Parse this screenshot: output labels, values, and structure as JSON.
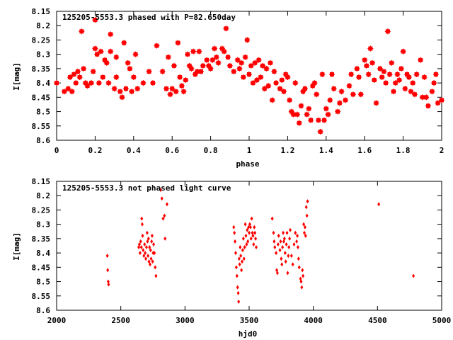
{
  "colors": {
    "points": "#ff0000",
    "axes": "#000000",
    "background": "#ffffff"
  },
  "chart_data": [
    {
      "type": "scatter",
      "title": "125205-5553.3 phased with P=82.650day",
      "xlabel": "phase",
      "ylabel": "I[mag]",
      "xlim": [
        0,
        2
      ],
      "ylim": [
        8.6,
        8.15
      ],
      "y_inverted": true,
      "marker": "filled-star",
      "grid": false,
      "x_ticks": [
        "0",
        "0.2",
        "0.4",
        "0.6",
        "0.8",
        "1",
        "1.2",
        "1.4",
        "1.6",
        "1.8",
        "2"
      ],
      "y_ticks": [
        "8.15",
        "8.2",
        "8.25",
        "8.3",
        "8.35",
        "8.4",
        "8.45",
        "8.5",
        "8.55",
        "8.6"
      ],
      "points": [
        [
          0.0,
          8.4
        ],
        [
          0.04,
          8.43
        ],
        [
          0.06,
          8.42
        ],
        [
          0.07,
          8.38
        ],
        [
          0.08,
          8.43
        ],
        [
          0.09,
          8.37
        ],
        [
          0.1,
          8.4
        ],
        [
          0.11,
          8.36
        ],
        [
          0.12,
          8.38
        ],
        [
          0.13,
          8.22
        ],
        [
          0.14,
          8.35
        ],
        [
          0.15,
          8.4
        ],
        [
          0.16,
          8.41
        ],
        [
          0.18,
          8.4
        ],
        [
          0.19,
          8.36
        ],
        [
          0.2,
          8.18
        ],
        [
          0.2,
          8.28
        ],
        [
          0.21,
          8.3
        ],
        [
          0.22,
          8.4
        ],
        [
          0.23,
          8.29
        ],
        [
          0.24,
          8.38
        ],
        [
          0.25,
          8.32
        ],
        [
          0.26,
          8.33
        ],
        [
          0.27,
          8.4
        ],
        [
          0.28,
          8.23
        ],
        [
          0.28,
          8.29
        ],
        [
          0.3,
          8.42
        ],
        [
          0.31,
          8.38
        ],
        [
          0.31,
          8.31
        ],
        [
          0.33,
          8.43
        ],
        [
          0.34,
          8.45
        ],
        [
          0.35,
          8.26
        ],
        [
          0.36,
          8.42
        ],
        [
          0.37,
          8.33
        ],
        [
          0.38,
          8.35
        ],
        [
          0.39,
          8.43
        ],
        [
          0.4,
          8.38
        ],
        [
          0.41,
          8.3
        ],
        [
          0.42,
          8.42
        ],
        [
          0.45,
          8.4
        ],
        [
          0.48,
          8.36
        ],
        [
          0.5,
          8.4
        ],
        [
          0.52,
          8.27
        ],
        [
          0.55,
          8.36
        ],
        [
          0.57,
          8.42
        ],
        [
          0.58,
          8.31
        ],
        [
          0.59,
          8.44
        ],
        [
          0.6,
          8.42
        ],
        [
          0.61,
          8.34
        ],
        [
          0.62,
          8.43
        ],
        [
          0.63,
          8.26
        ],
        [
          0.64,
          8.38
        ],
        [
          0.65,
          8.41
        ],
        [
          0.66,
          8.43
        ],
        [
          0.67,
          8.39
        ],
        [
          0.68,
          8.3
        ],
        [
          0.69,
          8.34
        ],
        [
          0.7,
          8.35
        ],
        [
          0.71,
          8.29
        ],
        [
          0.72,
          8.37
        ],
        [
          0.73,
          8.36
        ],
        [
          0.74,
          8.29
        ],
        [
          0.75,
          8.36
        ],
        [
          0.76,
          8.34
        ],
        [
          0.78,
          8.32
        ],
        [
          0.79,
          8.34
        ],
        [
          0.8,
          8.35
        ],
        [
          0.81,
          8.32
        ],
        [
          0.82,
          8.28
        ],
        [
          0.83,
          8.31
        ],
        [
          0.84,
          8.33
        ],
        [
          0.86,
          8.28
        ],
        [
          0.87,
          8.29
        ],
        [
          0.88,
          8.21
        ],
        [
          0.89,
          8.31
        ],
        [
          0.9,
          8.34
        ],
        [
          0.92,
          8.36
        ],
        [
          0.94,
          8.32
        ],
        [
          0.95,
          8.35
        ],
        [
          0.96,
          8.33
        ],
        [
          0.97,
          8.38
        ],
        [
          0.98,
          8.31
        ],
        [
          0.99,
          8.25
        ],
        [
          1.0,
          8.37
        ],
        [
          1.01,
          8.34
        ],
        [
          1.02,
          8.4
        ],
        [
          1.03,
          8.33
        ],
        [
          1.04,
          8.39
        ],
        [
          1.05,
          8.32
        ],
        [
          1.06,
          8.38
        ],
        [
          1.07,
          8.34
        ],
        [
          1.08,
          8.42
        ],
        [
          1.09,
          8.35
        ],
        [
          1.1,
          8.41
        ],
        [
          1.11,
          8.33
        ],
        [
          1.12,
          8.46
        ],
        [
          1.13,
          8.36
        ],
        [
          1.14,
          8.4
        ],
        [
          1.16,
          8.42
        ],
        [
          1.17,
          8.39
        ],
        [
          1.18,
          8.43
        ],
        [
          1.19,
          8.37
        ],
        [
          1.2,
          8.38
        ],
        [
          1.21,
          8.46
        ],
        [
          1.22,
          8.5
        ],
        [
          1.23,
          8.51
        ],
        [
          1.24,
          8.4
        ],
        [
          1.25,
          8.51
        ],
        [
          1.26,
          8.54
        ],
        [
          1.27,
          8.48
        ],
        [
          1.28,
          8.43
        ],
        [
          1.29,
          8.42
        ],
        [
          1.3,
          8.51
        ],
        [
          1.31,
          8.49
        ],
        [
          1.32,
          8.53
        ],
        [
          1.33,
          8.41
        ],
        [
          1.34,
          8.4
        ],
        [
          1.35,
          8.44
        ],
        [
          1.36,
          8.53
        ],
        [
          1.37,
          8.57
        ],
        [
          1.38,
          8.37
        ],
        [
          1.39,
          8.53
        ],
        [
          1.4,
          8.49
        ],
        [
          1.41,
          8.51
        ],
        [
          1.42,
          8.46
        ],
        [
          1.43,
          8.37
        ],
        [
          1.44,
          8.42
        ],
        [
          1.46,
          8.5
        ],
        [
          1.47,
          8.47
        ],
        [
          1.48,
          8.43
        ],
        [
          1.5,
          8.46
        ],
        [
          1.52,
          8.41
        ],
        [
          1.53,
          8.37
        ],
        [
          1.54,
          8.44
        ],
        [
          1.56,
          8.35
        ],
        [
          1.57,
          8.38
        ],
        [
          1.58,
          8.44
        ],
        [
          1.6,
          8.32
        ],
        [
          1.61,
          8.34
        ],
        [
          1.62,
          8.37
        ],
        [
          1.63,
          8.28
        ],
        [
          1.64,
          8.33
        ],
        [
          1.65,
          8.39
        ],
        [
          1.66,
          8.47
        ],
        [
          1.68,
          8.35
        ],
        [
          1.69,
          8.38
        ],
        [
          1.7,
          8.36
        ],
        [
          1.71,
          8.4
        ],
        [
          1.72,
          8.22
        ],
        [
          1.73,
          8.37
        ],
        [
          1.74,
          8.33
        ],
        [
          1.75,
          8.43
        ],
        [
          1.76,
          8.4
        ],
        [
          1.77,
          8.37
        ],
        [
          1.78,
          8.39
        ],
        [
          1.79,
          8.35
        ],
        [
          1.8,
          8.29
        ],
        [
          1.81,
          8.42
        ],
        [
          1.82,
          8.37
        ],
        [
          1.83,
          8.38
        ],
        [
          1.84,
          8.43
        ],
        [
          1.85,
          8.4
        ],
        [
          1.86,
          8.44
        ],
        [
          1.87,
          8.37
        ],
        [
          1.89,
          8.32
        ],
        [
          1.9,
          8.45
        ],
        [
          1.91,
          8.38
        ],
        [
          1.92,
          8.45
        ],
        [
          1.93,
          8.48
        ],
        [
          1.95,
          8.43
        ],
        [
          1.96,
          8.4
        ],
        [
          1.97,
          8.37
        ],
        [
          1.98,
          8.47
        ],
        [
          2.0,
          8.46
        ]
      ]
    },
    {
      "type": "scatter",
      "title": "125205-5553.3 not phased light curve",
      "xlabel": "hjd0",
      "ylabel": "I[mag]",
      "xlim": [
        2000,
        5000
      ],
      "ylim": [
        8.6,
        8.15
      ],
      "y_inverted": true,
      "marker": "small-diamond",
      "grid": false,
      "x_ticks": [
        "2000",
        "2500",
        "3000",
        "3500",
        "4000",
        "4500",
        "5000"
      ],
      "y_ticks": [
        "8.15",
        "8.2",
        "8.25",
        "8.3",
        "8.35",
        "8.4",
        "8.45",
        "8.5",
        "8.55",
        "8.6"
      ],
      "points": [
        [
          2395,
          8.41
        ],
        [
          2398,
          8.46
        ],
        [
          2402,
          8.5
        ],
        [
          2405,
          8.51
        ],
        [
          2640,
          8.38
        ],
        [
          2645,
          8.37
        ],
        [
          2650,
          8.4
        ],
        [
          2655,
          8.36
        ],
        [
          2660,
          8.38
        ],
        [
          2663,
          8.28
        ],
        [
          2667,
          8.3
        ],
        [
          2670,
          8.34
        ],
        [
          2674,
          8.39
        ],
        [
          2680,
          8.41
        ],
        [
          2685,
          8.37
        ],
        [
          2690,
          8.4
        ],
        [
          2695,
          8.42
        ],
        [
          2700,
          8.38
        ],
        [
          2705,
          8.33
        ],
        [
          2708,
          8.36
        ],
        [
          2712,
          8.41
        ],
        [
          2716,
          8.35
        ],
        [
          2720,
          8.43
        ],
        [
          2724,
          8.38
        ],
        [
          2728,
          8.44
        ],
        [
          2732,
          8.39
        ],
        [
          2736,
          8.42
        ],
        [
          2740,
          8.36
        ],
        [
          2744,
          8.34
        ],
        [
          2748,
          8.43
        ],
        [
          2752,
          8.4
        ],
        [
          2756,
          8.37
        ],
        [
          2762,
          8.4
        ],
        [
          2768,
          8.45
        ],
        [
          2774,
          8.48
        ],
        [
          2810,
          8.18
        ],
        [
          2820,
          8.21
        ],
        [
          2830,
          8.28
        ],
        [
          2840,
          8.27
        ],
        [
          2845,
          8.35
        ],
        [
          2860,
          8.23
        ],
        [
          3380,
          8.31
        ],
        [
          3385,
          8.33
        ],
        [
          3390,
          8.36
        ],
        [
          3395,
          8.4
        ],
        [
          3400,
          8.45
        ],
        [
          3405,
          8.48
        ],
        [
          3410,
          8.52
        ],
        [
          3415,
          8.54
        ],
        [
          3418,
          8.57
        ],
        [
          3422,
          8.42
        ],
        [
          3426,
          8.44
        ],
        [
          3430,
          8.38
        ],
        [
          3435,
          8.41
        ],
        [
          3440,
          8.46
        ],
        [
          3445,
          8.43
        ],
        [
          3450,
          8.39
        ],
        [
          3455,
          8.35
        ],
        [
          3460,
          8.42
        ],
        [
          3465,
          8.38
        ],
        [
          3470,
          8.3
        ],
        [
          3475,
          8.34
        ],
        [
          3480,
          8.37
        ],
        [
          3485,
          8.32
        ],
        [
          3490,
          8.36
        ],
        [
          3495,
          8.31
        ],
        [
          3500,
          8.33
        ],
        [
          3505,
          8.3
        ],
        [
          3510,
          8.31
        ],
        [
          3515,
          8.35
        ],
        [
          3520,
          8.28
        ],
        [
          3525,
          8.33
        ],
        [
          3530,
          8.34
        ],
        [
          3535,
          8.37
        ],
        [
          3540,
          8.31
        ],
        [
          3545,
          8.33
        ],
        [
          3550,
          8.35
        ],
        [
          3555,
          8.38
        ],
        [
          3680,
          8.28
        ],
        [
          3690,
          8.33
        ],
        [
          3695,
          8.36
        ],
        [
          3700,
          8.38
        ],
        [
          3710,
          8.4
        ],
        [
          3715,
          8.46
        ],
        [
          3720,
          8.47
        ],
        [
          3725,
          8.37
        ],
        [
          3730,
          8.34
        ],
        [
          3740,
          8.39
        ],
        [
          3745,
          8.36
        ],
        [
          3750,
          8.42
        ],
        [
          3755,
          8.44
        ],
        [
          3760,
          8.38
        ],
        [
          3765,
          8.33
        ],
        [
          3770,
          8.36
        ],
        [
          3775,
          8.35
        ],
        [
          3780,
          8.4
        ],
        [
          3785,
          8.43
        ],
        [
          3790,
          8.37
        ],
        [
          3795,
          8.33
        ],
        [
          3800,
          8.47
        ],
        [
          3805,
          8.41
        ],
        [
          3810,
          8.38
        ],
        [
          3815,
          8.35
        ],
        [
          3820,
          8.32
        ],
        [
          3830,
          8.41
        ],
        [
          3840,
          8.44
        ],
        [
          3850,
          8.37
        ],
        [
          3860,
          8.33
        ],
        [
          3870,
          8.36
        ],
        [
          3875,
          8.34
        ],
        [
          3880,
          8.38
        ],
        [
          3885,
          8.42
        ],
        [
          3890,
          8.45
        ],
        [
          3900,
          8.49
        ],
        [
          3905,
          8.5
        ],
        [
          3910,
          8.52
        ],
        [
          3915,
          8.46
        ],
        [
          3920,
          8.48
        ],
        [
          3925,
          8.3
        ],
        [
          3930,
          8.33
        ],
        [
          3935,
          8.31
        ],
        [
          3940,
          8.34
        ],
        [
          3945,
          8.24
        ],
        [
          3950,
          8.27
        ],
        [
          3955,
          8.22
        ],
        [
          4510,
          8.23
        ],
        [
          4780,
          8.48
        ]
      ]
    }
  ]
}
